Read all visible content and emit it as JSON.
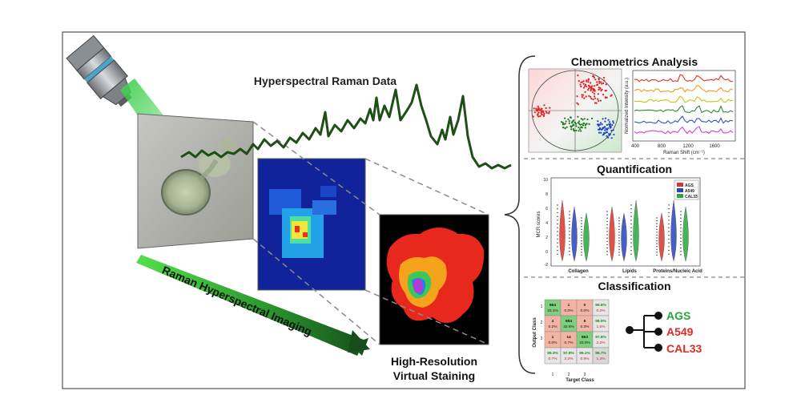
{
  "figure": {
    "left_panel": {
      "raman_data_title": "Hyperspectral Raman Data",
      "imaging_arrow_label": "Raman Hyperspectral Imaging",
      "staining_label_line1": "High-Resolution",
      "staining_label_line2": "Virtual Staining"
    },
    "right_panel": {
      "chemometrics": {
        "title": "Chemometrics Analysis",
        "spectra_ylabel": "Normalized Intensity (a.u.)",
        "spectra_xlabel": "Raman Shift (cm⁻¹)",
        "spectra_xticks": [
          "400",
          "800",
          "1200",
          "1600"
        ],
        "spectra_colors": [
          "#e0312b",
          "#f29a1f",
          "#c9c21a",
          "#2e8b2e",
          "#2f54c8",
          "#d23fd2"
        ]
      },
      "quantification": {
        "title": "Quantification",
        "ylabel": "MCR scores",
        "yticks": [
          "10",
          "8",
          "6",
          "4",
          "2",
          "0",
          "-2"
        ],
        "categories": [
          "Collagen",
          "Lipids",
          "Proteins/Nucleic Acid"
        ],
        "legend": [
          {
            "name": "AGS",
            "color": "#d9342b"
          },
          {
            "name": "A549",
            "color": "#2744b8"
          },
          {
            "name": "CAL33",
            "color": "#27a83a"
          }
        ]
      },
      "classification": {
        "title": "Classification",
        "ylabel": "Output Class",
        "xlabel": "Target Class",
        "row_labels": [
          "1",
          "2",
          "3"
        ],
        "col_labels": [
          "1",
          "2",
          "3"
        ],
        "cells": [
          [
            {
              "n": "664",
              "p": "33.1%"
            },
            {
              "n": "1",
              "p": "0.0%"
            },
            {
              "n": "0",
              "p": "0.0%"
            },
            {
              "n": "99.8%",
              "p": "0.2%"
            }
          ],
          [
            {
              "n": "4",
              "p": "0.2%"
            },
            {
              "n": "654",
              "p": "32.6%"
            },
            {
              "n": "6",
              "p": "0.3%"
            },
            {
              "n": "98.5%",
              "p": "1.5%"
            }
          ],
          [
            {
              "n": "1",
              "p": "0.0%"
            },
            {
              "n": "14",
              "p": "0.7%"
            },
            {
              "n": "663",
              "p": "33.0%"
            },
            {
              "n": "97.8%",
              "p": "2.2%"
            }
          ],
          [
            {
              "n": "99.3%",
              "p": "0.7%"
            },
            {
              "n": "97.8%",
              "p": "2.2%"
            },
            {
              "n": "99.1%",
              "p": "0.9%"
            },
            {
              "n": "98.7%",
              "p": "1.3%"
            }
          ]
        ],
        "classes": [
          {
            "name": "AGS",
            "color": "#22a83a"
          },
          {
            "name": "A549",
            "color": "#e02a22"
          },
          {
            "name": "CAL33",
            "color": "#e02a22"
          }
        ]
      }
    }
  }
}
